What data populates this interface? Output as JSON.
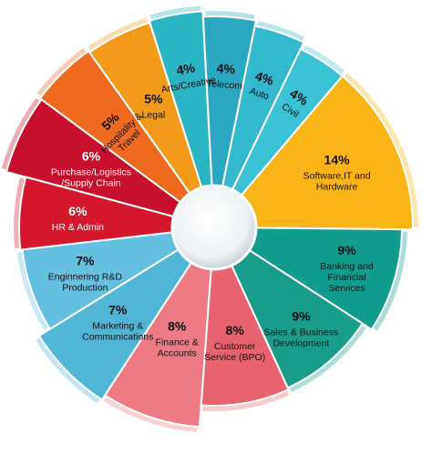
{
  "chart_data": {
    "type": "pie",
    "title": "",
    "slices": [
      {
        "label": "Purchase/Logistics /Supply Chain",
        "lines": [
          "Purchase/Logistics",
          "/Supply Chain"
        ],
        "value": 6,
        "percent_label": "6%",
        "color": "#c8102e"
      },
      {
        "label": "Hospitality & Travel",
        "lines": [
          "Hospitality &",
          "Travel"
        ],
        "value": 5,
        "percent_label": "5%",
        "color": "#ee6a1e"
      },
      {
        "label": "Legal",
        "lines": [
          "Legal"
        ],
        "value": 5,
        "percent_label": "5%",
        "color": "#f39a1b"
      },
      {
        "label": "Arts/Creative",
        "lines": [
          "Arts/Creative"
        ],
        "value": 4,
        "percent_label": "4%",
        "color": "#2bb5c4"
      },
      {
        "label": "Telecom",
        "lines": [
          "Telecom"
        ],
        "value": 4,
        "percent_label": "4%",
        "color": "#2ba7c4"
      },
      {
        "label": "Auto",
        "lines": [
          "Auto"
        ],
        "value": 4,
        "percent_label": "4%",
        "color": "#34b8d0"
      },
      {
        "label": "Civil",
        "lines": [
          "Civil"
        ],
        "value": 4,
        "percent_label": "4%",
        "color": "#3cc2d6"
      },
      {
        "label": "Software,IT and Hardware",
        "lines": [
          "Software,IT and",
          "Hardware"
        ],
        "value": 14,
        "percent_label": "14%",
        "color": "#fbb416"
      },
      {
        "label": "Banking and Financial Services",
        "lines": [
          "Banking and",
          "Financial",
          "Services"
        ],
        "value": 9,
        "percent_label": "9%",
        "color": "#129c8e"
      },
      {
        "label": "Sales & Business Development",
        "lines": [
          "Sales & Business",
          "Development"
        ],
        "value": 9,
        "percent_label": "9%",
        "color": "#1a9c8a"
      },
      {
        "label": "Customer Service (BPO)",
        "lines": [
          "Customer",
          "Service (BPO)"
        ],
        "value": 8,
        "percent_label": "8%",
        "color": "#e7636f"
      },
      {
        "label": "Finance & Accounts",
        "lines": [
          "Finance &",
          "Accounts"
        ],
        "value": 8,
        "percent_label": "8%",
        "color": "#ee7a85"
      },
      {
        "label": "Marketing & Communications",
        "lines": [
          "Marketing &",
          "Communications"
        ],
        "value": 7,
        "percent_label": "7%",
        "color": "#4fb6d8"
      },
      {
        "label": "Enginnering R&D Production",
        "lines": [
          "Enginnering R&D",
          "Production"
        ],
        "value": 7,
        "percent_label": "7%",
        "color": "#63c0e0"
      },
      {
        "label": "HR & Admin",
        "lines": [
          "HR & Admin"
        ],
        "value": 6,
        "percent_label": "6%",
        "color": "#d6162c"
      }
    ],
    "legend": "none",
    "grid": false
  }
}
